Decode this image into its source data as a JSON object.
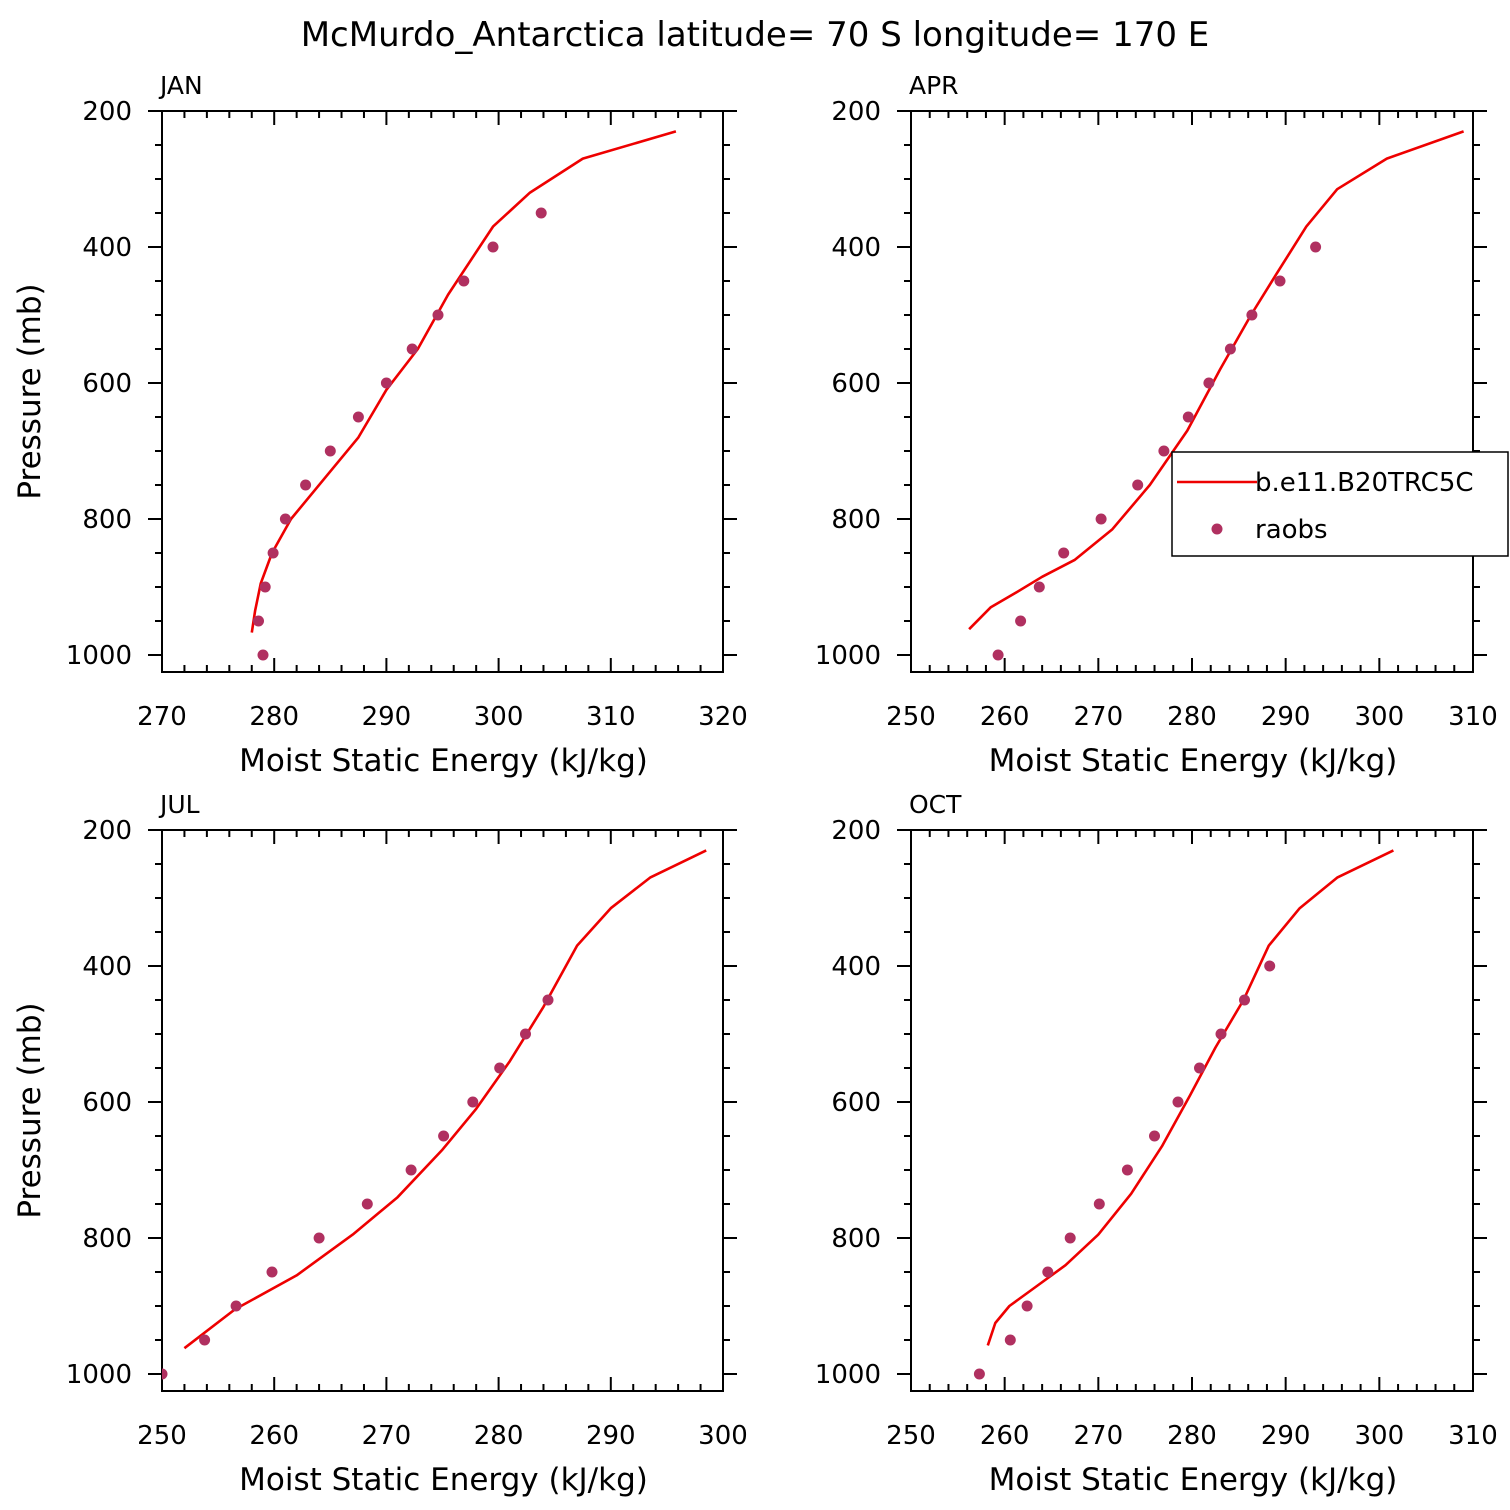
{
  "figure": {
    "title": "McMurdo_Antarctica  latitude= 70 S longitude= 170 E"
  },
  "colors": {
    "model_line": "#ee0000",
    "obs_marker": "#b03060",
    "axes": "#000000"
  },
  "legend": {
    "entries": [
      {
        "label": "b.e11.B20TRC5C",
        "kind": "line"
      },
      {
        "label": "raobs",
        "kind": "marker"
      }
    ]
  },
  "chart_data": [
    {
      "type": "line",
      "panel": "JAN",
      "xlabel": "Moist Static Energy (kJ/kg)",
      "ylabel": "Pressure (mb)",
      "xlim": [
        270,
        320
      ],
      "ylim": [
        1025,
        200
      ],
      "xticks": [
        270,
        280,
        290,
        300,
        310,
        320
      ],
      "yticks": [
        200,
        400,
        600,
        800,
        1000
      ],
      "series": [
        {
          "name": "b.e11.B20TRC5C",
          "kind": "line",
          "x": [
            278.0,
            278.3,
            278.8,
            279.8,
            281.5,
            284.5,
            287.5,
            290.0,
            292.8,
            295.5,
            299.5,
            302.8,
            307.5,
            315.8
          ],
          "y": [
            967,
            935,
            895,
            850,
            800,
            740,
            680,
            610,
            550,
            470,
            370,
            320,
            270,
            230
          ]
        },
        {
          "name": "raobs",
          "kind": "scatter",
          "x": [
            279.0,
            278.6,
            279.2,
            279.9,
            281.0,
            282.8,
            285.0,
            287.5,
            290.0,
            292.3,
            294.6,
            296.9,
            299.5,
            303.8
          ],
          "y": [
            1000,
            950,
            900,
            850,
            800,
            750,
            700,
            650,
            600,
            550,
            500,
            450,
            400,
            350
          ]
        }
      ]
    },
    {
      "type": "line",
      "panel": "APR",
      "xlabel": "Moist Static Energy (kJ/kg)",
      "ylabel": "",
      "xlim": [
        250,
        310
      ],
      "ylim": [
        1025,
        200
      ],
      "xticks": [
        250,
        260,
        270,
        280,
        290,
        300,
        310
      ],
      "yticks": [
        200,
        400,
        600,
        800,
        1000
      ],
      "series": [
        {
          "name": "b.e11.B20TRC5C",
          "kind": "line",
          "x": [
            256.2,
            258.5,
            261.0,
            264.0,
            267.5,
            271.5,
            275.5,
            279.5,
            283.0,
            286.3,
            289.0,
            292.2,
            295.5,
            300.8,
            309.0
          ],
          "y": [
            962,
            930,
            910,
            885,
            860,
            815,
            750,
            670,
            580,
            500,
            440,
            370,
            315,
            270,
            230
          ]
        },
        {
          "name": "raobs",
          "kind": "scatter",
          "x": [
            259.3,
            261.7,
            263.7,
            266.3,
            270.3,
            274.2,
            277.0,
            279.6,
            281.8,
            284.1,
            286.4,
            289.4,
            293.2
          ],
          "y": [
            1000,
            950,
            900,
            850,
            800,
            750,
            700,
            650,
            600,
            550,
            500,
            450,
            400
          ]
        }
      ]
    },
    {
      "type": "line",
      "panel": "JUL",
      "xlabel": "Moist Static Energy (kJ/kg)",
      "ylabel": "Pressure (mb)",
      "xlim": [
        250,
        300
      ],
      "ylim": [
        1025,
        200
      ],
      "xticks": [
        250,
        260,
        270,
        280,
        290,
        300
      ],
      "yticks": [
        200,
        400,
        600,
        800,
        1000
      ],
      "series": [
        {
          "name": "b.e11.B20TRC5C",
          "kind": "line",
          "x": [
            252.0,
            256.5,
            262.0,
            267.0,
            271.0,
            275.0,
            278.0,
            281.0,
            284.0,
            287.0,
            290.0,
            293.5,
            298.5
          ],
          "y": [
            962,
            905,
            855,
            795,
            740,
            670,
            610,
            540,
            460,
            370,
            315,
            270,
            230
          ]
        },
        {
          "name": "raobs",
          "kind": "scatter",
          "x": [
            250.0,
            253.8,
            256.6,
            259.8,
            264.0,
            268.3,
            272.2,
            275.1,
            277.7,
            280.1,
            282.4,
            284.4
          ],
          "y": [
            1000,
            950,
            900,
            850,
            800,
            750,
            700,
            650,
            600,
            550,
            500,
            450
          ]
        }
      ]
    },
    {
      "type": "line",
      "panel": "OCT",
      "xlabel": "Moist Static Energy (kJ/kg)",
      "ylabel": "",
      "xlim": [
        250,
        310
      ],
      "ylim": [
        1025,
        200
      ],
      "xticks": [
        250,
        260,
        270,
        280,
        290,
        300,
        310
      ],
      "yticks": [
        200,
        400,
        600,
        800,
        1000
      ],
      "series": [
        {
          "name": "b.e11.B20TRC5C",
          "kind": "line",
          "x": [
            258.2,
            259.0,
            260.5,
            263.0,
            266.5,
            270.0,
            273.5,
            276.8,
            279.8,
            282.5,
            285.5,
            288.2,
            291.5,
            295.5,
            301.5
          ],
          "y": [
            958,
            925,
            900,
            875,
            840,
            795,
            735,
            665,
            590,
            520,
            450,
            370,
            315,
            270,
            230
          ]
        },
        {
          "name": "raobs",
          "kind": "scatter",
          "x": [
            257.3,
            260.6,
            262.4,
            264.6,
            267.0,
            270.1,
            273.1,
            276.0,
            278.5,
            280.8,
            283.1,
            285.6,
            288.3
          ],
          "y": [
            1000,
            950,
            900,
            850,
            800,
            750,
            700,
            650,
            600,
            550,
            500,
            450,
            400
          ]
        }
      ]
    }
  ]
}
